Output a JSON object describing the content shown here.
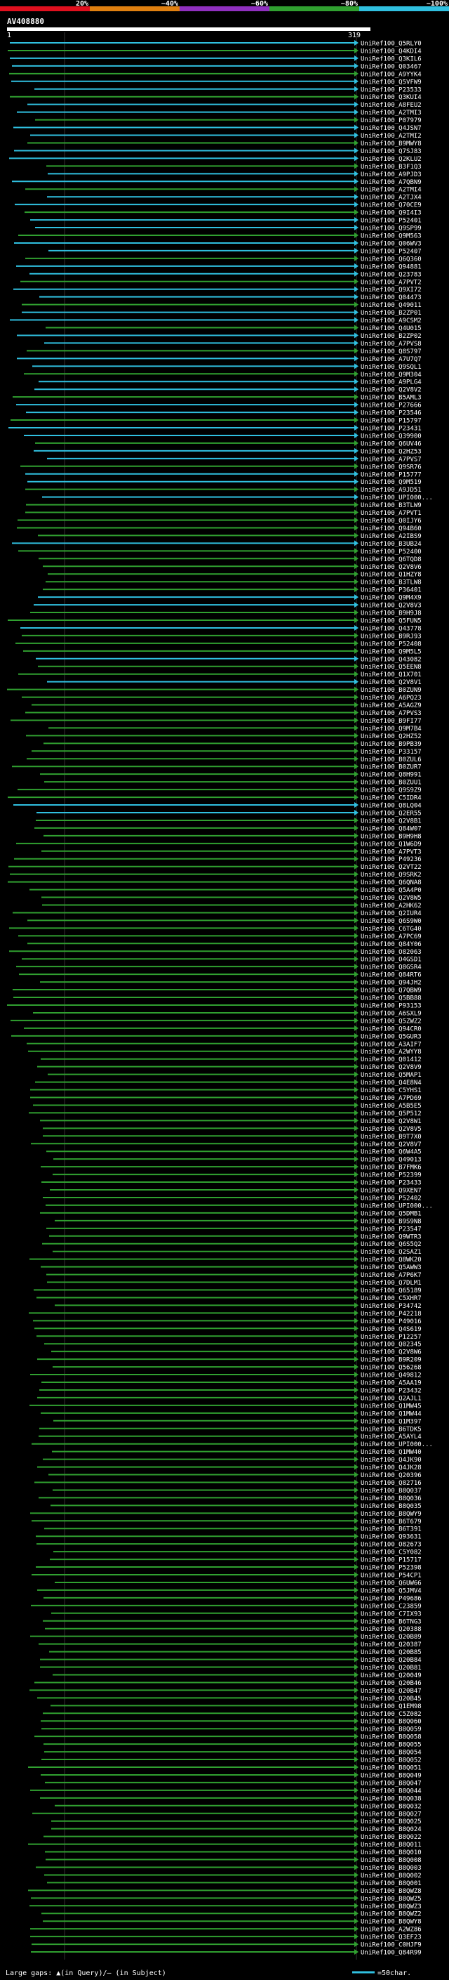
{
  "title": "AV408880",
  "scale": {
    "labels": [
      "20%",
      "~40%",
      "~60%",
      "~80%",
      "~100%"
    ],
    "colors": [
      "#e0101e",
      "#e08010",
      "#9030c0",
      "#30a030",
      "#30c0e0"
    ]
  },
  "legend": {
    "text": "Large gaps: ▲(in Query)/– (in Subject)",
    "line_label": "=50char."
  },
  "chart_data": {
    "type": "alignment",
    "query_start": "1",
    "query_end": "319",
    "hits": [
      "UniRef100_Q5RLY0",
      "UniRef100_Q4KDI4",
      "UniRef100_Q3KIL6",
      "UniRef100_Q03467",
      "UniRef100_A9YYK4",
      "UniRef100_Q5VFW9",
      "UniRef100_P23533",
      "UniRef100_Q3KUI4",
      "UniRef100_A8FEU2",
      "UniRef100_A2TMI3",
      "UniRef100_P07979",
      "UniRef100_Q4JSN7",
      "UniRef100_A2TMI2",
      "UniRef100_B9MWY8",
      "UniRef100_Q7SJ83",
      "UniRef100_Q2KLU2",
      "UniRef100_B3F1Q3",
      "UniRef100_A9PJD3",
      "UniRef100_A7QBN9",
      "UniRef100_A2TMI4",
      "UniRef100_A2TJX4",
      "UniRef100_Q70CE9",
      "UniRef100_Q9I4I3",
      "UniRef100_P52401",
      "UniRef100_Q9SP99",
      "UniRef100_Q9M563",
      "UniRef100_Q06WV3",
      "UniRef100_P52407",
      "UniRef100_Q6Q360",
      "UniRef100_Q94881",
      "UniRef100_Q23783",
      "UniRef100_A7PVT2",
      "UniRef100_Q9XI72",
      "UniRef100_Q04473",
      "UniRef100_Q49011",
      "UniRef100_B2ZP01",
      "UniRef100_A9CSM2",
      "UniRef100_Q4U015",
      "UniRef100_B2ZP02",
      "UniRef100_A7PVS8",
      "UniRef100_Q8S797",
      "UniRef100_A7U7Q7",
      "UniRef100_Q9SQL1",
      "UniRef100_Q9M304",
      "UniRef100_A9PLG4",
      "UniRef100_Q2V8V2",
      "UniRef100_B5AML3",
      "UniRef100_P27666",
      "UniRef100_P23546",
      "UniRef100_P15797",
      "UniRef100_P23431",
      "UniRef100_Q39900",
      "UniRef100_Q6UV46",
      "UniRef100_Q2HZ53",
      "UniRef100_A7PVS7",
      "UniRef100_Q9SR76",
      "UniRef100_P15777",
      "UniRef100_Q9M519",
      "UniRef100_A9JD51",
      "UniRef100_UPI000...",
      "UniRef100_B3TLW9",
      "UniRef100_A7PVT1",
      "UniRef100_Q0IJY6",
      "UniRef100_Q94B60",
      "UniRef100_A2IBS9",
      "UniRef100_B3UB24",
      "UniRef100_P52400",
      "UniRef100_Q6TQD8",
      "UniRef100_Q2V8V6",
      "UniRef100_Q1HZY8",
      "UniRef100_B3TLW8",
      "UniRef100_P36401",
      "UniRef100_Q9M4X9",
      "UniRef100_Q2V8V3",
      "UniRef100_B9H9J8",
      "UniRef100_Q5FUN5",
      "UniRef100_Q43778",
      "UniRef100_B9RJ93",
      "UniRef100_P52408",
      "UniRef100_Q9M5L5",
      "UniRef100_Q43082",
      "UniRef100_Q5EEN8",
      "UniRef100_Q1X701",
      "UniRef100_Q2V8V1",
      "UniRef100_B0ZUN9",
      "UniRef100_A6PQ23",
      "UniRef100_A5AGZ9",
      "UniRef100_A7PVS3",
      "UniRef100_B9FI77",
      "UniRef100_Q9M7B4",
      "UniRef100_Q2HZ52",
      "UniRef100_B9PB39",
      "UniRef100_P33157",
      "UniRef100_B0ZUL6",
      "UniRef100_B0ZUR7",
      "UniRef100_Q8H991",
      "UniRef100_B0ZUU1",
      "UniRef100_Q9S9Z9",
      "UniRef100_C5IDR4",
      "UniRef100_Q8LQ04",
      "UniRef100_Q2ER55",
      "UniRef100_Q2V8B1",
      "UniRef100_Q84W07",
      "UniRef100_B9H9H8",
      "UniRef100_Q1W6D9",
      "UniRef100_A7PVT3",
      "UniRef100_P49236",
      "UniRef100_Q2VT22",
      "UniRef100_Q9SRK2",
      "UniRef100_Q6QNA8",
      "UniRef100_Q5A4P0",
      "UniRef100_Q2V8W5",
      "UniRef100_A2HK62",
      "UniRef100_Q2IUR4",
      "UniRef100_Q6S9W0",
      "UniRef100_C6TG40",
      "UniRef100_A7PC69",
      "UniRef100_Q84Y06",
      "UniRef100_O82063",
      "UniRef100_O4GSD1",
      "UniRef100_Q8GSR4",
      "UniRef100_Q84RT6",
      "UniRef100_Q94JH2",
      "UniRef100_Q7QBW9",
      "UniRef100_Q5BB88",
      "UniRef100_P93153",
      "UniRef100_A6SXL9",
      "UniRef100_Q5ZWZ2",
      "UniRef100_Q94CR0",
      "UniRef100_Q5GUR3",
      "UniRef100_A3AIF7",
      "UniRef100_A2WYY8",
      "UniRef100_Q01412",
      "UniRef100_Q2V8V9",
      "UniRef100_Q5MAP1",
      "UniRef100_Q4E8N4",
      "UniRef100_C5YHS1",
      "UniRef100_A7PD69",
      "UniRef100_A5B5E5",
      "UniRef100_Q5P512",
      "UniRef100_Q2V8W1",
      "UniRef100_Q2V8V5",
      "UniRef100_B9T7X0",
      "UniRef100_Q2V8V7",
      "UniRef100_Q6W4A5",
      "UniRef100_Q49013",
      "UniRef100_B7FMK6",
      "UniRef100_P52399",
      "UniRef100_P23433",
      "UniRef100_Q9XEN7",
      "UniRef100_P52402",
      "UniRef100_UPI000...",
      "UniRef100_Q5DMB1",
      "UniRef100_B9S9N8",
      "UniRef100_P23547",
      "UniRef100_Q9WTR3",
      "UniRef100_Q6S5Q2",
      "UniRef100_Q2SAZ1",
      "UniRef100_Q8WK20",
      "UniRef100_Q5AWW3",
      "UniRef100_A7P6K7",
      "UniRef100_Q7DLM1",
      "UniRef100_Q65189",
      "UniRef100_C5XHR7",
      "UniRef100_P34742",
      "UniRef100_P42218",
      "UniRef100_P49016",
      "UniRef100_Q4S619",
      "UniRef100_P12257",
      "UniRef100_Q02345",
      "UniRef100_Q2V8W6",
      "UniRef100_B9R209",
      "UniRef100_Q56268",
      "UniRef100_Q49812",
      "UniRef100_A5AA19",
      "UniRef100_P23432",
      "UniRef100_Q2AJL1",
      "UniRef100_Q1MW45",
      "UniRef100_Q1MW44",
      "UniRef100_Q1M397",
      "UniRef100_B6TDK5",
      "UniRef100_A5AYL4",
      "UniRef100_UPI000...",
      "UniRef100_Q1MW40",
      "UniRef100_Q4JK90",
      "UniRef100_Q4JK28",
      "UniRef100_Q20396",
      "UniRef100_Q82716",
      "UniRef100_B8Q037",
      "UniRef100_B8Q036",
      "UniRef100_B8Q035",
      "UniRef100_B8QWY9",
      "UniRef100_B6T679",
      "UniRef100_B6T391",
      "UniRef100_Q93631",
      "UniRef100_O82673",
      "UniRef100_C5Y082",
      "UniRef100_P15717",
      "UniRef100_P52398",
      "UniRef100_P54CP1",
      "UniRef100_Q6UW66",
      "UniRef100_Q5JMV4",
      "UniRef100_P49686",
      "UniRef100_C23859",
      "UniRef100_C7IX93",
      "UniRef100_B6TNG3",
      "UniRef100_Q20388",
      "UniRef100_Q20B89",
      "UniRef100_Q20387",
      "UniRef100_Q20B85",
      "UniRef100_Q20B84",
      "UniRef100_Q20B81",
      "UniRef100_Q20049",
      "UniRef100_Q20B46",
      "UniRef100_Q20B47",
      "UniRef100_Q20B45",
      "UniRef100_Q1EM98",
      "UniRef100_C5Z082",
      "UniRef100_B8Q060",
      "UniRef100_B8Q059",
      "UniRef100_B8Q058",
      "UniRef100_B8Q055",
      "UniRef100_B8Q054",
      "UniRef100_B8Q052",
      "UniRef100_B8Q051",
      "UniRef100_B8Q049",
      "UniRef100_B8Q047",
      "UniRef100_B8Q044",
      "UniRef100_B8Q038",
      "UniRef100_B8Q032",
      "UniRef100_B8Q027",
      "UniRef100_B8Q025",
      "UniRef100_B8Q024",
      "UniRef100_B8Q022",
      "UniRef100_B8Q011",
      "UniRef100_B8Q010",
      "UniRef100_B8Q008",
      "UniRef100_B8Q003",
      "UniRef100_B8Q002",
      "UniRef100_B8Q001",
      "UniRef100_B8QWZ8",
      "UniRef100_B8QWZ5",
      "UniRef100_B8QWZ3",
      "UniRef100_B8QWZ2",
      "UniRef100_B8QWY8",
      "UniRef100_A2WZ86",
      "UniRef100_Q3EF23",
      "UniRef100_C0HJF9",
      "UniRef100_Q84R99"
    ]
  }
}
